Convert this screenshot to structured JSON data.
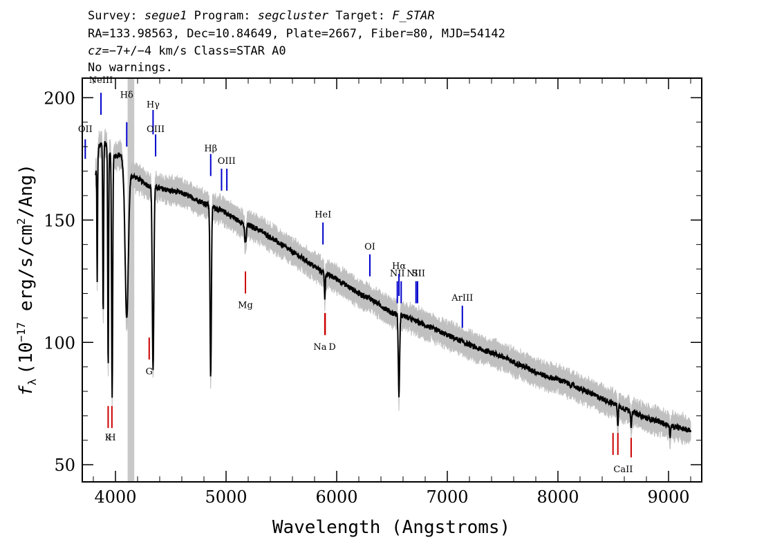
{
  "header": {
    "line1": {
      "survey_label": "Survey:",
      "survey": "segue1",
      "program_label": "Program:",
      "program": "segcluster",
      "target_label": "Target:",
      "target": "F_STAR"
    },
    "line2": "RA=133.98563, Dec=10.84649, Plate=2667, Fiber=80, MJD=54142",
    "line3": {
      "cz_label": "cz",
      "cz_value": "=−7+/−4",
      "cz_unit": " km/s Class=STAR A0"
    },
    "line4": "No warnings."
  },
  "chart_data": {
    "type": "line",
    "xlabel": "Wavelength (Angstroms)",
    "ylabel": "f_λ (10^-17 erg/s/cm^2/Ang)",
    "ylabel_parts": {
      "f": "f",
      "sub": "λ",
      "a": "(10",
      "exp1": "−17",
      "b": " erg/s/cm",
      "exp2": "2",
      "c": "/Ang)"
    },
    "xlim": [
      3700,
      9300
    ],
    "ylim": [
      43,
      208
    ],
    "xticks": [
      4000,
      5000,
      6000,
      7000,
      8000,
      9000
    ],
    "yticks": [
      50,
      100,
      150,
      200
    ],
    "xtick_labels": [
      "4000",
      "5000",
      "6000",
      "7000",
      "8000",
      "9000"
    ],
    "ytick_labels": [
      "50",
      "100",
      "150",
      "200"
    ],
    "masked_region": [
      4110,
      4170
    ],
    "colors": {
      "spectrum": "#000000",
      "error": "#c0c0c0",
      "emission": "#0000cc",
      "absorption": "#cc0000",
      "mask": "#c8c8c8"
    },
    "continuum": [
      [
        3820,
        168
      ],
      [
        3850,
        180
      ],
      [
        3900,
        182
      ],
      [
        3950,
        178
      ],
      [
        4000,
        176
      ],
      [
        4050,
        177
      ],
      [
        4080,
        170
      ],
      [
        4200,
        167
      ],
      [
        4300,
        164
      ],
      [
        4400,
        163
      ],
      [
        4500,
        162
      ],
      [
        4600,
        161
      ],
      [
        4700,
        159
      ],
      [
        4800,
        157
      ],
      [
        4900,
        155
      ],
      [
        5000,
        153
      ],
      [
        5100,
        150
      ],
      [
        5200,
        148
      ],
      [
        5300,
        146
      ],
      [
        5400,
        143
      ],
      [
        5500,
        140
      ],
      [
        5600,
        137
      ],
      [
        5700,
        134
      ],
      [
        5800,
        131
      ],
      [
        5900,
        128
      ],
      [
        6000,
        126
      ],
      [
        6100,
        123
      ],
      [
        6200,
        120
      ],
      [
        6300,
        118
      ],
      [
        6400,
        115
      ],
      [
        6500,
        112
      ],
      [
        6600,
        111
      ],
      [
        6700,
        109
      ],
      [
        6800,
        107
      ],
      [
        6900,
        105
      ],
      [
        7000,
        103
      ],
      [
        7100,
        101
      ],
      [
        7200,
        99
      ],
      [
        7300,
        97
      ],
      [
        7400,
        96
      ],
      [
        7500,
        94
      ],
      [
        7600,
        92
      ],
      [
        7700,
        90
      ],
      [
        7800,
        88
      ],
      [
        7900,
        86
      ],
      [
        8000,
        85
      ],
      [
        8100,
        83
      ],
      [
        8200,
        81
      ],
      [
        8300,
        79
      ],
      [
        8400,
        77
      ],
      [
        8500,
        75
      ],
      [
        8600,
        73
      ],
      [
        8700,
        71
      ],
      [
        8800,
        69
      ],
      [
        8900,
        68
      ],
      [
        9000,
        66
      ],
      [
        9100,
        65
      ],
      [
        9200,
        64
      ]
    ],
    "absorption_features": [
      {
        "x": 3835,
        "depth": 50,
        "width": 3
      },
      {
        "x": 3889,
        "depth": 70,
        "width": 4
      },
      {
        "x": 3934,
        "depth": 90,
        "width": 4
      },
      {
        "x": 3970,
        "depth": 100,
        "width": 5
      },
      {
        "x": 4102,
        "depth": 60,
        "width": 14
      },
      {
        "x": 4340,
        "depth": 75,
        "width": 7
      },
      {
        "x": 4861,
        "depth": 70,
        "width": 6
      },
      {
        "x": 5175,
        "depth": 8,
        "width": 8
      },
      {
        "x": 5893,
        "depth": 10,
        "width": 4
      },
      {
        "x": 6563,
        "depth": 33,
        "width": 6
      },
      {
        "x": 8542,
        "depth": 8,
        "width": 4
      },
      {
        "x": 8662,
        "depth": 6,
        "width": 4
      },
      {
        "x": 9015,
        "depth": 4,
        "width": 5
      }
    ],
    "emission_lines": [
      {
        "label": "OII",
        "x": 3727,
        "y0": 175,
        "y1": 183,
        "lx": 3727,
        "ly": 186
      },
      {
        "label": "NeIII",
        "x": 3869,
        "y0": 193,
        "y1": 202,
        "lx": 3869,
        "ly": 206
      },
      {
        "label": "Hδ",
        "x": 4102,
        "y0": 180,
        "y1": 190,
        "lx": 4102,
        "ly": 200
      },
      {
        "label": "Hγ",
        "x": 4340,
        "y0": 185,
        "y1": 195,
        "lx": 4340,
        "ly": 196
      },
      {
        "label": "OIII",
        "x": 4363,
        "y0": 176,
        "y1": 185,
        "lx": 4363,
        "ly": 186
      },
      {
        "label": "Hβ",
        "x": 4861,
        "y0": 168,
        "y1": 177,
        "lx": 4861,
        "ly": 178
      },
      {
        "label": "OIII",
        "x": 4959,
        "y0": 162,
        "y1": 171,
        "lx": 5005,
        "ly": 173
      },
      {
        "label": "",
        "x": 5007,
        "y0": 162,
        "y1": 171,
        "lx": 5007,
        "ly": 173
      },
      {
        "label": "HeI",
        "x": 5876,
        "y0": 140,
        "y1": 149,
        "lx": 5876,
        "ly": 151
      },
      {
        "label": "OI",
        "x": 6300,
        "y0": 127,
        "y1": 136,
        "lx": 6300,
        "ly": 138
      },
      {
        "label": "NII",
        "x": 6548,
        "y0": 116,
        "y1": 125,
        "lx": 6548,
        "ly": 127
      },
      {
        "label": "Hα",
        "x": 6563,
        "y0": 119,
        "y1": 128,
        "lx": 6563,
        "ly": 130
      },
      {
        "label": "",
        "x": 6583,
        "y0": 116,
        "y1": 125,
        "lx": 6583,
        "ly": 127
      },
      {
        "label": "NII",
        "x": 6717,
        "y0": 116,
        "y1": 125,
        "lx": 6700,
        "ly": 127
      },
      {
        "label": "SII",
        "x": 6731,
        "y0": 116,
        "y1": 125,
        "lx": 6740,
        "ly": 127
      },
      {
        "label": "ArIII",
        "x": 7136,
        "y0": 106,
        "y1": 115,
        "lx": 7136,
        "ly": 117
      }
    ],
    "absorption_lines": [
      {
        "label": "K",
        "x": 3934,
        "y0": 65,
        "y1": 74,
        "lx": 3934,
        "ly": 60
      },
      {
        "label": "H",
        "x": 3968,
        "y0": 65,
        "y1": 74,
        "lx": 3968,
        "ly": 60
      },
      {
        "label": "G",
        "x": 4305,
        "y0": 93,
        "y1": 102,
        "lx": 4305,
        "ly": 87
      },
      {
        "label": "Mg",
        "x": 5175,
        "y0": 120,
        "y1": 129,
        "lx": 5175,
        "ly": 114
      },
      {
        "label": "Na",
        "x": 5893,
        "y0": 103,
        "y1": 112,
        "lx": 5850,
        "ly": 97
      },
      {
        "label": "D",
        "x": 5896,
        "y0": 103,
        "y1": 112,
        "lx": 5960,
        "ly": 97
      },
      {
        "label": "CaII",
        "x": 8498,
        "y0": 54,
        "y1": 63,
        "lx": 8590,
        "ly": 47
      },
      {
        "label": "",
        "x": 8542,
        "y0": 54,
        "y1": 63,
        "lx": 8542,
        "ly": 47
      },
      {
        "label": "",
        "x": 8662,
        "y0": 53,
        "y1": 61,
        "lx": 8662,
        "ly": 47
      }
    ]
  }
}
